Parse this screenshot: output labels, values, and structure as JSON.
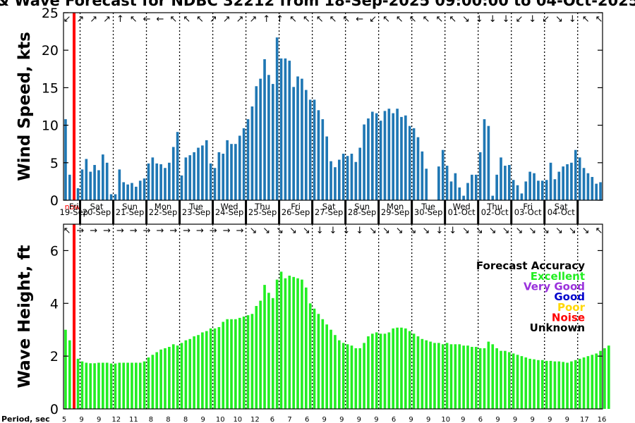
{
  "chart_data": {
    "type": "bar",
    "title": "& Wave Forecast for NDBC 32212 from 18-Sep-2025 09:00:00 to 04-Oct-2025",
    "now_label": "now",
    "period_label": "Period, sec",
    "colors": {
      "wind_bar": "#1f77b4",
      "wave_bar": "#22ee22",
      "now_line": "#ff0000"
    },
    "panels": [
      {
        "name": "wind-speed",
        "ylabel": "Wind Speed, kts",
        "ylim": [
          0,
          25
        ],
        "yticks": [
          0,
          5,
          10,
          15,
          20,
          25
        ],
        "values": [
          10.8,
          3.4,
          null,
          1.6,
          4.1,
          5.5,
          3.8,
          4.7,
          4.0,
          6.1,
          5.0,
          0.8,
          0.8,
          4.1,
          2.4,
          2.1,
          2.3,
          1.8,
          2.6,
          2.9,
          4.9,
          5.7,
          4.9,
          4.8,
          4.3,
          5.0,
          7.1,
          9.1,
          3.3,
          5.7,
          6.0,
          6.4,
          7.0,
          7.3,
          8.0,
          4.9,
          4.3,
          6.4,
          6.2,
          8.0,
          7.5,
          7.5,
          8.6,
          9.6,
          10.8,
          12.5,
          15.2,
          16.2,
          18.8,
          16.7,
          15.5,
          21.7,
          18.9,
          18.9,
          18.6,
          15.1,
          16.5,
          16.2,
          14.7,
          13.4,
          13.4,
          12.0,
          10.8,
          8.5,
          5.2,
          4.4,
          5.4,
          6.2,
          5.9,
          6.2,
          5.1,
          7.0,
          10.1,
          10.9,
          11.8,
          11.6,
          10.6,
          11.9,
          12.2,
          11.6,
          12.2,
          11.1,
          11.3,
          9.9,
          9.6,
          8.4,
          6.5,
          4.2,
          null,
          null,
          4.5,
          6.7,
          4.6,
          2.5,
          3.6,
          1.7,
          0.6,
          2.3,
          3.4,
          3.4,
          6.4,
          10.8,
          9.9,
          0.6,
          3.4,
          5.7,
          4.6,
          4.7,
          2.7,
          2.0,
          0.9,
          2.5,
          3.8,
          3.6,
          2.6,
          2.6,
          2.7,
          5.0,
          2.8,
          3.8,
          4.5,
          4.8,
          5.0,
          6.7,
          5.7,
          4.3,
          3.6,
          3.1,
          2.2,
          2.4
        ],
        "direction_arrows": [
          "↙",
          "↗",
          "↗",
          "↗",
          "↑",
          "↖",
          "←",
          "←",
          "↖",
          "↖",
          "↖",
          "↗",
          "↗",
          "↗",
          "↗",
          "↑",
          "↑",
          "↖",
          "↖",
          "↖",
          "↖",
          "↖",
          "←",
          "↙",
          "↖",
          "↖",
          "↖",
          "↖",
          "↖",
          "↖",
          "↘",
          "↓",
          "↓",
          "↓",
          "↙",
          "↓",
          "↙",
          "↘",
          "↓",
          "↖",
          "↖"
        ]
      },
      {
        "name": "wave-height",
        "ylabel": "Wave Height, ft",
        "ylim": [
          0,
          7
        ],
        "yticks": [
          0,
          2,
          4,
          6
        ],
        "values": [
          3.0,
          2.6,
          null,
          1.9,
          1.8,
          1.75,
          1.73,
          1.73,
          1.75,
          1.75,
          1.75,
          1.72,
          1.72,
          1.75,
          1.75,
          1.75,
          1.75,
          1.75,
          1.75,
          1.8,
          1.95,
          2.05,
          2.15,
          2.25,
          2.3,
          2.35,
          2.45,
          2.4,
          2.5,
          2.6,
          2.65,
          2.75,
          2.8,
          2.9,
          2.95,
          3.05,
          3.05,
          3.1,
          3.3,
          3.4,
          3.4,
          3.4,
          3.45,
          3.5,
          3.55,
          3.6,
          3.9,
          4.1,
          4.7,
          4.4,
          4.2,
          4.9,
          5.2,
          4.95,
          5.05,
          5.0,
          4.95,
          4.9,
          4.6,
          4.0,
          3.8,
          3.6,
          3.4,
          3.2,
          3.0,
          2.8,
          2.6,
          2.5,
          2.45,
          2.4,
          2.3,
          2.3,
          2.5,
          2.75,
          2.85,
          2.9,
          2.85,
          2.85,
          2.9,
          3.05,
          3.08,
          3.08,
          3.05,
          2.95,
          2.85,
          2.75,
          2.65,
          2.6,
          2.55,
          2.5,
          2.5,
          2.45,
          2.5,
          2.45,
          2.45,
          2.45,
          2.4,
          2.4,
          2.35,
          2.35,
          2.3,
          2.3,
          2.55,
          2.45,
          2.3,
          2.2,
          2.2,
          2.15,
          2.1,
          2.05,
          2.0,
          1.95,
          1.9,
          1.88,
          1.85,
          1.85,
          1.82,
          1.82,
          1.8,
          1.8,
          1.78,
          1.75,
          1.8,
          1.85,
          1.9,
          1.95,
          2.0,
          2.05,
          2.1,
          2.2,
          2.3,
          2.4
        ],
        "direction_arrows": [
          "↖",
          "→",
          "→",
          "→",
          "→",
          "→",
          "→",
          "→",
          "→",
          "→",
          "→",
          "→",
          "→",
          "→",
          "↘",
          "↘",
          "↘",
          "↘",
          "↘",
          "↓",
          "↓",
          "↓",
          "↓",
          "↘",
          "↘",
          "↘",
          "↘",
          "↘",
          "↓",
          "↓",
          "↘",
          "↘",
          "↘",
          "↘",
          "↘",
          "↘",
          "↘",
          "↘",
          "↘",
          "↘",
          "↖"
        ]
      }
    ],
    "day_labels": [
      {
        "day": "Fri",
        "date": "19-Sep"
      },
      {
        "day": "Sat",
        "date": "20-Sep"
      },
      {
        "day": "Sun",
        "date": "21-Sep"
      },
      {
        "day": "Mon",
        "date": "22-Sep"
      },
      {
        "day": "Tue",
        "date": "23-Sep"
      },
      {
        "day": "Wed",
        "date": "24-Sep"
      },
      {
        "day": "Thu",
        "date": "25-Sep"
      },
      {
        "day": "Fri",
        "date": "26-Sep"
      },
      {
        "day": "Sat",
        "date": "27-Sep"
      },
      {
        "day": "Sun",
        "date": "28-Sep"
      },
      {
        "day": "Mon",
        "date": "29-Sep"
      },
      {
        "day": "Tue",
        "date": "30-Sep"
      },
      {
        "day": "Wed",
        "date": "01-Oct"
      },
      {
        "day": "Thu",
        "date": "02-Oct"
      },
      {
        "day": "Fri",
        "date": "03-Oct"
      },
      {
        "day": "Sat",
        "date": "04-Oct"
      }
    ],
    "periods": [
      "5",
      "9",
      "9",
      "12",
      "11",
      "8",
      "8",
      "8",
      "9",
      "10",
      "10",
      "12",
      "6",
      "7",
      "6",
      "9",
      "9",
      "9",
      "9",
      "6",
      "9",
      "9",
      "10",
      "9",
      "6",
      "9",
      "9",
      "9",
      "9",
      "9",
      "17",
      "16"
    ],
    "legend": {
      "title": "Forecast Accuracy",
      "items": [
        {
          "label": "Excellent",
          "color": "#22ee22"
        },
        {
          "label": "Very Good",
          "color": "#9a32dc"
        },
        {
          "label": "Good",
          "color": "#0000cc"
        },
        {
          "label": "Poor",
          "color": "#ffd700"
        },
        {
          "label": "Noise",
          "color": "#ff0000"
        },
        {
          "label": "Unknown",
          "color": "#000000"
        }
      ]
    }
  }
}
